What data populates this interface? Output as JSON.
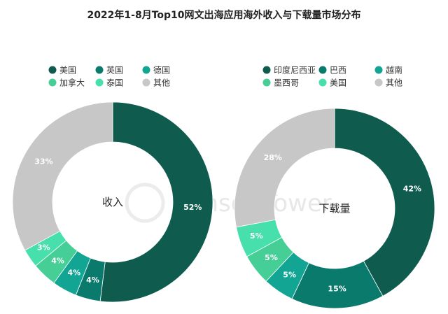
{
  "page": {
    "title": "2022年1-8月Top10网文出海应用海外收入与下载量市场分布",
    "watermark": "Sensor Tower"
  },
  "chart_data": [
    {
      "type": "pie",
      "center_label": "收入",
      "legend": [
        {
          "name": "美国",
          "color": "#0f5c4f"
        },
        {
          "name": "英国",
          "color": "#0a7a6d"
        },
        {
          "name": "德国",
          "color": "#12a594"
        },
        {
          "name": "加拿大",
          "color": "#45cf97"
        },
        {
          "name": "泰国",
          "color": "#47e0ad"
        },
        {
          "name": "其他",
          "color": "#c7c7c7"
        }
      ],
      "series": [
        {
          "values": [
            52,
            4,
            4,
            4,
            3,
            33
          ],
          "labels": [
            "52%",
            "4%",
            "4%",
            "4%",
            "3%",
            "33%"
          ]
        }
      ]
    },
    {
      "type": "pie",
      "center_label": "下载量",
      "legend": [
        {
          "name": "印度尼西亚",
          "color": "#0f5c4f"
        },
        {
          "name": "巴西",
          "color": "#0a7a6d"
        },
        {
          "name": "越南",
          "color": "#12a594"
        },
        {
          "name": "墨西哥",
          "color": "#45cf97"
        },
        {
          "name": "美国",
          "color": "#47e0ad"
        },
        {
          "name": "其他",
          "color": "#c7c7c7"
        }
      ],
      "series": [
        {
          "values": [
            42,
            15,
            5,
            5,
            5,
            28
          ],
          "labels": [
            "42%",
            "15%",
            "5%",
            "5%",
            "5%",
            "28%"
          ]
        }
      ]
    }
  ]
}
